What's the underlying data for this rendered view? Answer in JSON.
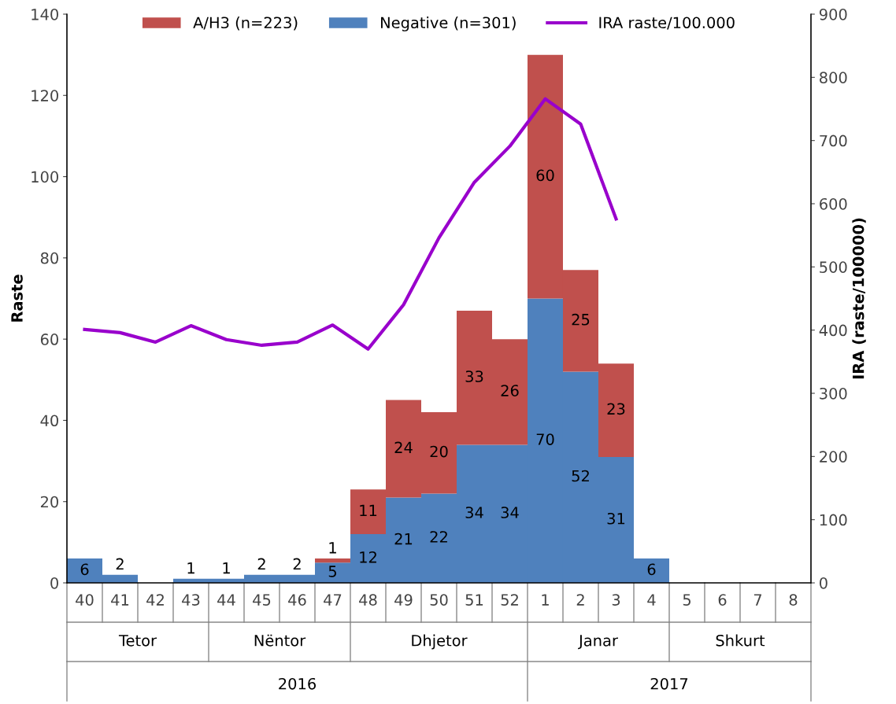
{
  "chart_data": {
    "type": "bar",
    "stacked": true,
    "categories": [
      "40",
      "41",
      "42",
      "43",
      "44",
      "45",
      "46",
      "47",
      "48",
      "49",
      "50",
      "51",
      "52",
      "1",
      "2",
      "3",
      "4",
      "5",
      "6",
      "7",
      "8"
    ],
    "series": [
      {
        "name": "Negative (n=301)",
        "color": "#4f81bd",
        "values": [
          6,
          2,
          0,
          1,
          1,
          2,
          2,
          5,
          12,
          21,
          22,
          34,
          34,
          70,
          52,
          31,
          6,
          0,
          0,
          0,
          0
        ],
        "value_labels": [
          "6",
          "2",
          null,
          "1",
          "1",
          "2",
          "2",
          "5",
          "12",
          "21",
          "22",
          "34",
          "34",
          "70",
          "52",
          "31",
          "6",
          null,
          null,
          null,
          null
        ]
      },
      {
        "name": "A/H3 (n=223)",
        "color": "#c0504d",
        "values": [
          0,
          0,
          0,
          0,
          0,
          0,
          0,
          1,
          11,
          24,
          20,
          33,
          26,
          60,
          25,
          23,
          0,
          0,
          0,
          0,
          0
        ],
        "value_labels": [
          null,
          null,
          null,
          null,
          null,
          null,
          null,
          "1",
          "11",
          "24",
          "20",
          "33",
          "26",
          "60",
          "25",
          "23",
          null,
          null,
          null,
          null,
          null
        ]
      },
      {
        "name": "IRA raste/100.000",
        "type": "line",
        "axis": "y2",
        "color": "#9900cc",
        "values": [
          401,
          396,
          381,
          407,
          385,
          376,
          381,
          408,
          370,
          440,
          546,
          634,
          691,
          766,
          726,
          576,
          null,
          null,
          null,
          null,
          null
        ]
      }
    ],
    "ylabel": "Raste",
    "y2label": "IRA (raste/100000)",
    "ylim": [
      0,
      140
    ],
    "yticks": [
      0,
      20,
      40,
      60,
      80,
      100,
      120,
      140
    ],
    "y2lim": [
      0,
      900
    ],
    "y2ticks": [
      0,
      100,
      200,
      300,
      400,
      500,
      600,
      700,
      800,
      900
    ],
    "annotations": [
      "Tetor",
      "Nëntor",
      "Dhjetor",
      "Janar",
      "Shkurt",
      "2016",
      "2017"
    ],
    "legend": "top",
    "grid": false,
    "marker": "none",
    "line_style": "solid"
  }
}
